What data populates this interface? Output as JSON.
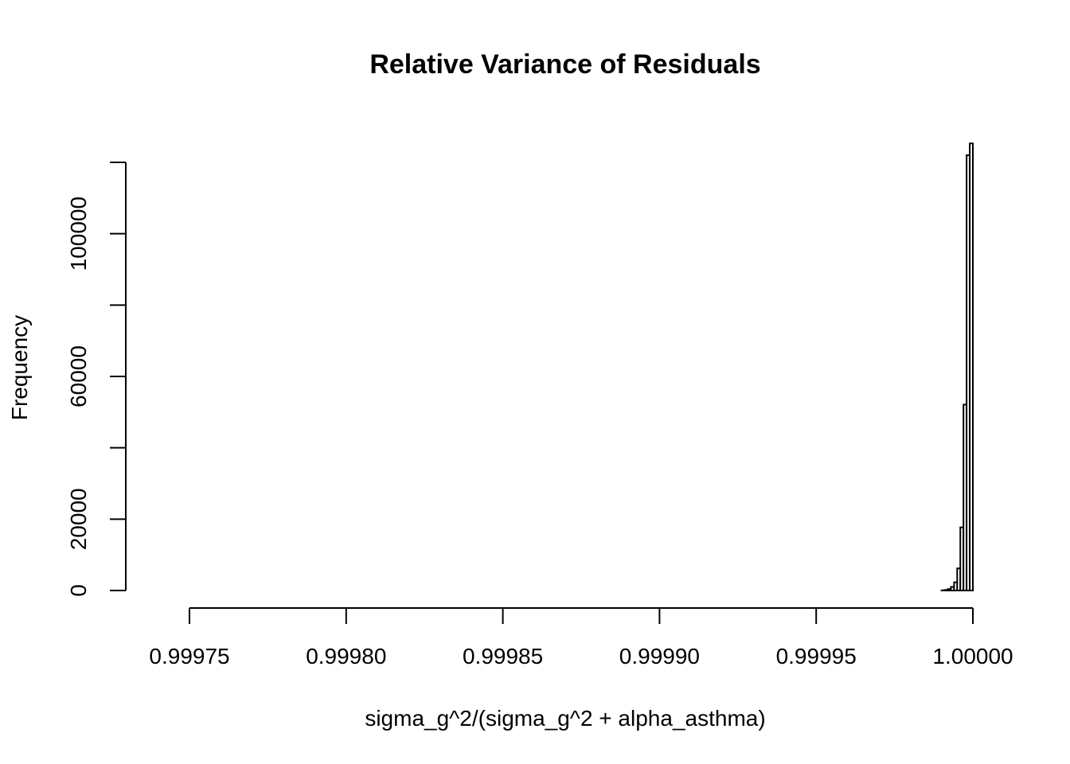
{
  "chart_data": {
    "type": "bar",
    "title": "Relative Variance of Residuals",
    "xlabel": "sigma_g^2/(sigma_g^2 + alpha_asthma)",
    "ylabel": "Frequency",
    "xlim": [
      0.99975,
      1.0
    ],
    "ylim": [
      0,
      120000
    ],
    "x_ticks": [
      {
        "value": 0.99975,
        "label": "0.99975"
      },
      {
        "value": 0.9998,
        "label": "0.99980"
      },
      {
        "value": 0.99985,
        "label": "0.99985"
      },
      {
        "value": 0.9999,
        "label": "0.99990"
      },
      {
        "value": 0.99995,
        "label": "0.99995"
      },
      {
        "value": 1.0,
        "label": "1.00000"
      }
    ],
    "y_ticks": [
      {
        "value": 0,
        "label": "0"
      },
      {
        "value": 20000,
        "label": "20000"
      },
      {
        "value": 40000,
        "label": ""
      },
      {
        "value": 60000,
        "label": "60000"
      },
      {
        "value": 80000,
        "label": ""
      },
      {
        "value": 100000,
        "label": "100000"
      },
      {
        "value": 120000,
        "label": ""
      }
    ],
    "bin_width": 1e-06,
    "bins": [
      {
        "start": 0.999974,
        "count": 0
      },
      {
        "start": 0.999975,
        "count": 0
      },
      {
        "start": 0.999976,
        "count": 0
      },
      {
        "start": 0.999977,
        "count": 0
      },
      {
        "start": 0.999978,
        "count": 0
      },
      {
        "start": 0.999979,
        "count": 0
      },
      {
        "start": 0.99998,
        "count": 0
      },
      {
        "start": 0.999981,
        "count": 0
      },
      {
        "start": 0.999982,
        "count": 0
      },
      {
        "start": 0.999983,
        "count": 0
      },
      {
        "start": 0.999984,
        "count": 0
      },
      {
        "start": 0.999985,
        "count": 0
      },
      {
        "start": 0.999986,
        "count": 0
      },
      {
        "start": 0.999987,
        "count": 0
      },
      {
        "start": 0.999988,
        "count": 0
      },
      {
        "start": 0.999989,
        "count": 0
      },
      {
        "start": 0.99999,
        "count": 50
      },
      {
        "start": 0.999991,
        "count": 150
      },
      {
        "start": 0.999992,
        "count": 400
      },
      {
        "start": 0.999993,
        "count": 1000
      },
      {
        "start": 0.999994,
        "count": 2300
      },
      {
        "start": 0.999995,
        "count": 6200
      },
      {
        "start": 0.999996,
        "count": 17700
      },
      {
        "start": 0.999997,
        "count": 52100
      },
      {
        "start": 0.999998,
        "count": 122000
      },
      {
        "start": 0.999999,
        "count": 125300
      }
    ]
  }
}
